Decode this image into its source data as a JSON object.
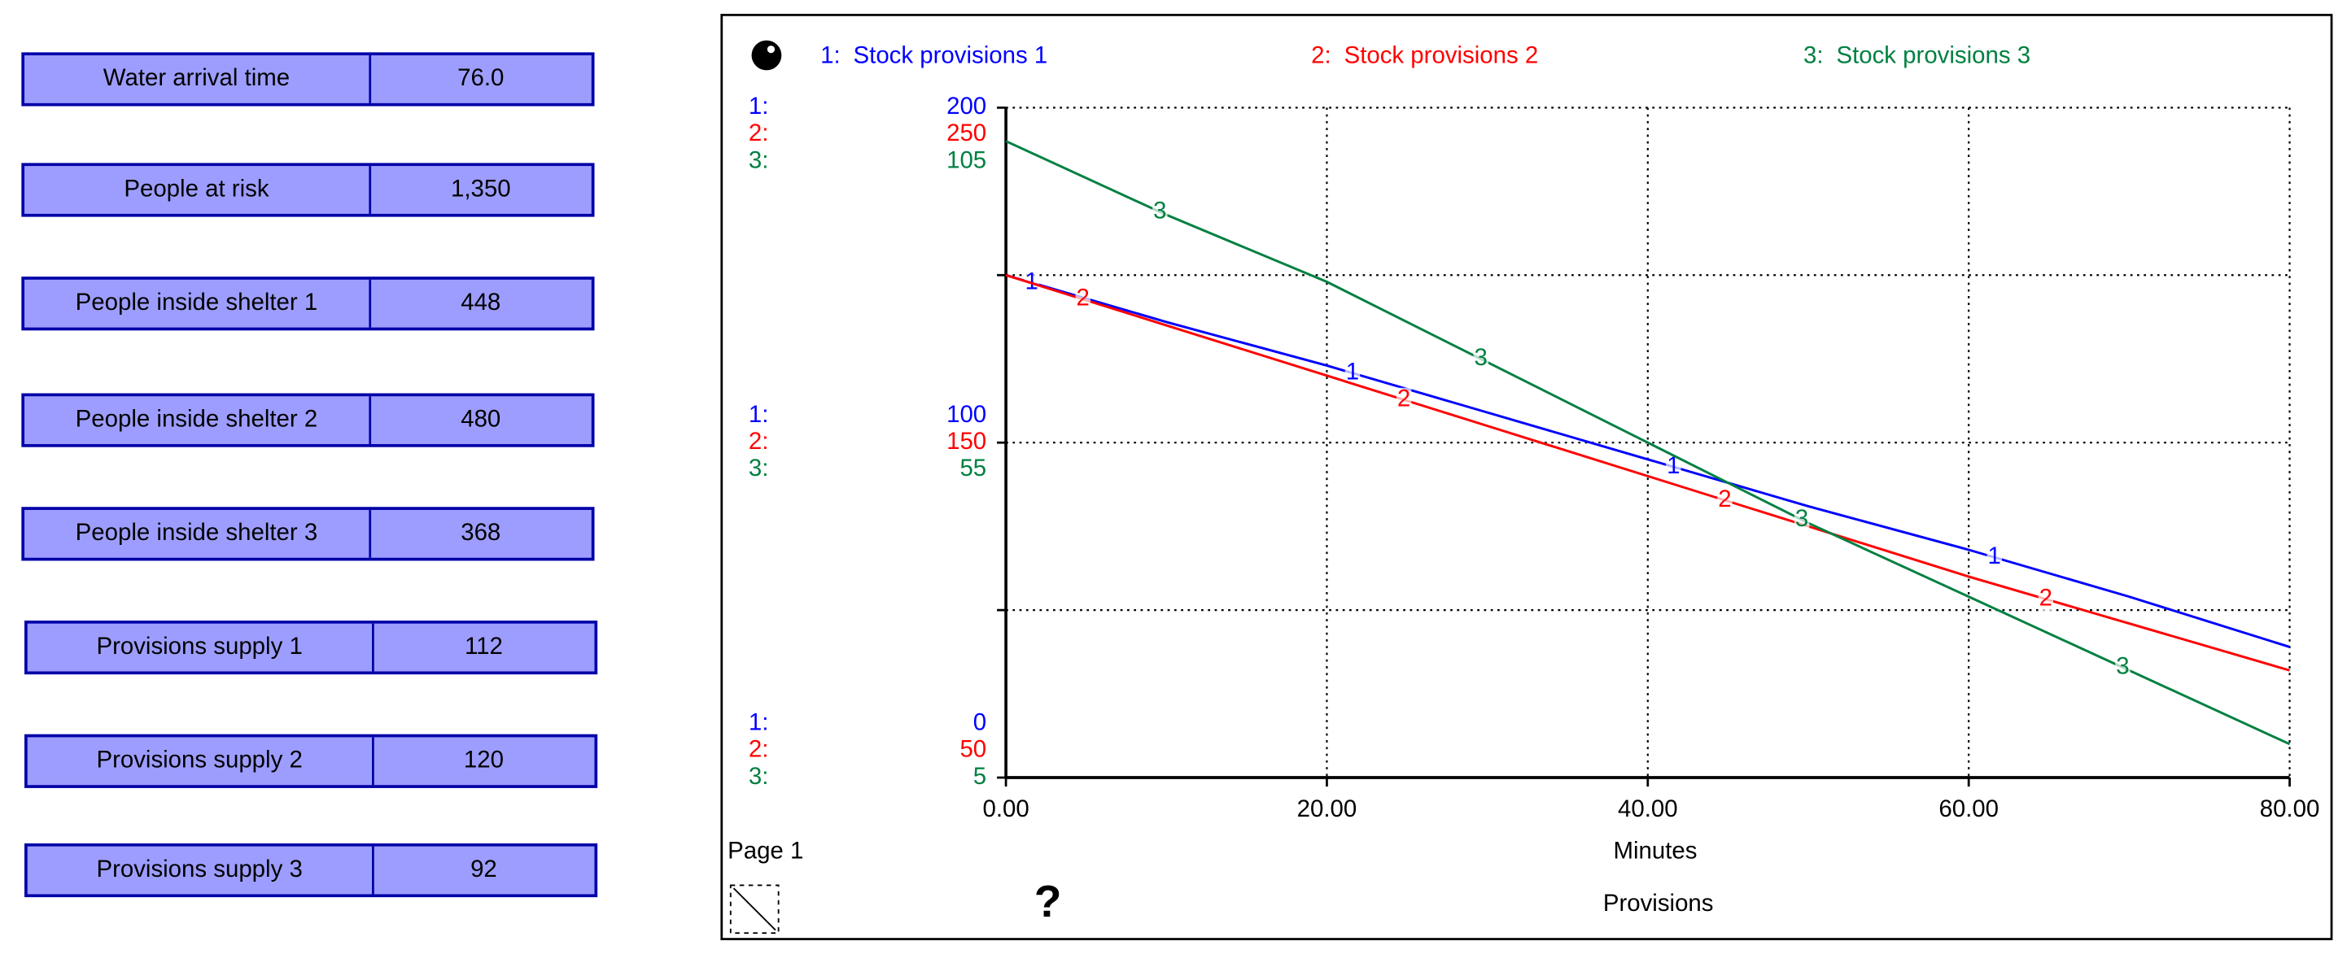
{
  "panel": {
    "rows": [
      {
        "label": "Water arrival time",
        "value": "76.0"
      },
      {
        "label": "People at risk",
        "value": "1,350"
      },
      {
        "label": "People inside shelter 1",
        "value": "448"
      },
      {
        "label": "People inside shelter 2",
        "value": "480"
      },
      {
        "label": "People inside shelter 3",
        "value": "368"
      },
      {
        "label": "Provisions supply 1",
        "value": "112"
      },
      {
        "label": "Provisions supply 2",
        "value": "120"
      },
      {
        "label": "Provisions supply 3",
        "value": "92"
      }
    ]
  },
  "page_label": "Page 1",
  "help_button": "?",
  "chart_data": {
    "type": "line",
    "title": "Provisions",
    "x_label": "Minutes",
    "x": [
      0,
      10,
      20,
      30,
      40,
      50,
      60,
      70,
      80
    ],
    "xlim": [
      0,
      80
    ],
    "xticks": [
      {
        "value": 0,
        "label": "0.00"
      },
      {
        "value": 20,
        "label": "20.00"
      },
      {
        "value": 40,
        "label": "40.00"
      },
      {
        "value": 60,
        "label": "60.00"
      },
      {
        "value": 80,
        "label": "80.00"
      }
    ],
    "grid": true,
    "series": [
      {
        "key": "1:",
        "marker": "1",
        "name": "Stock provisions 1",
        "color": "#0000ff",
        "values": [
          150,
          136,
          123,
          109,
          95,
          81,
          68,
          54,
          39
        ],
        "ylim": [
          0,
          200
        ],
        "yticks": [
          0,
          100,
          200
        ]
      },
      {
        "key": "2:",
        "marker": "2",
        "name": "Stock provisions 2",
        "color": "#ff0000",
        "values": [
          200,
          185,
          170,
          155,
          140,
          125,
          110,
          96,
          82
        ],
        "ylim": [
          50,
          250
        ],
        "yticks": [
          50,
          150,
          250
        ]
      },
      {
        "key": "3:",
        "marker": "3",
        "name": "Stock provisions 3",
        "color": "#008040",
        "values": [
          100,
          89,
          79,
          67,
          55,
          43,
          32,
          21,
          10
        ],
        "ylim": [
          5,
          105
        ],
        "yticks": [
          5,
          55,
          105
        ]
      }
    ]
  }
}
